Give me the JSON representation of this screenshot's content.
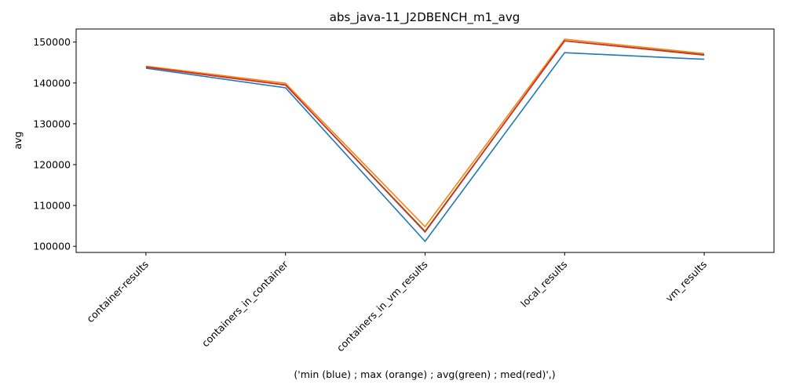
{
  "chart_data": {
    "type": "line",
    "title": "abs_java-11_J2DBENCH_m1_avg",
    "xlabel": "('min (blue) ; max (orange) ; avg(green) ; med(red)',)",
    "ylabel": "avg",
    "categories": [
      "container-results",
      "containers_in_container",
      "containers_in_vm_results",
      "local_results",
      "vm_results"
    ],
    "ylim": [
      98500,
      153200
    ],
    "yticks": [
      100000,
      110000,
      120000,
      130000,
      140000,
      150000
    ],
    "grid": false,
    "series": [
      {
        "color": "#1f77b4",
        "values": [
          143600,
          138800,
          101200,
          147400,
          145800
        ]
      },
      {
        "color": "#ff7f0e",
        "values": [
          144100,
          139900,
          104800,
          150700,
          147200
        ]
      },
      {
        "color": "#2ca02c",
        "values": [
          143900,
          139500,
          103700,
          150300,
          146900
        ]
      },
      {
        "color": "#d62728",
        "values": [
          143900,
          139500,
          103500,
          150300,
          146800
        ]
      }
    ]
  }
}
